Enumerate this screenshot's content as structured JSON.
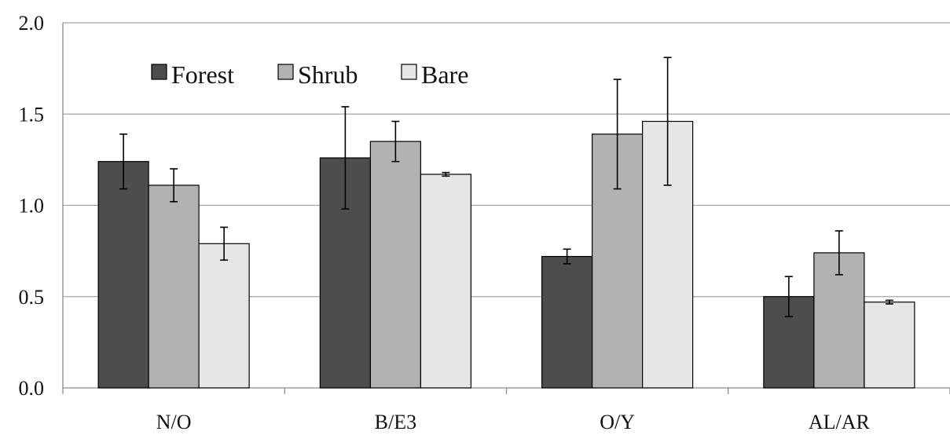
{
  "chart_data": {
    "type": "bar",
    "categories": [
      "N/O",
      "B/E3",
      "O/Y",
      "AL/AR"
    ],
    "ylim": [
      0,
      2.0
    ],
    "yticks": [
      "0.0",
      "0.5",
      "1.0",
      "1.5",
      "2.0"
    ],
    "grid": true,
    "legend_position": "top-left",
    "series": [
      {
        "name": "Forest",
        "color": "#4d4d4d",
        "values": [
          1.24,
          1.26,
          0.72,
          0.5
        ],
        "errors": [
          0.15,
          0.28,
          0.04,
          0.11
        ]
      },
      {
        "name": "Shrub",
        "color": "#b2b2b2",
        "values": [
          1.11,
          1.35,
          1.39,
          0.74
        ],
        "errors": [
          0.09,
          0.11,
          0.3,
          0.12
        ]
      },
      {
        "name": "Bare",
        "color": "#e6e6e6",
        "values": [
          0.79,
          1.17,
          1.46,
          0.47
        ],
        "errors": [
          0.09,
          0.01,
          0.35,
          0.01
        ]
      }
    ]
  }
}
